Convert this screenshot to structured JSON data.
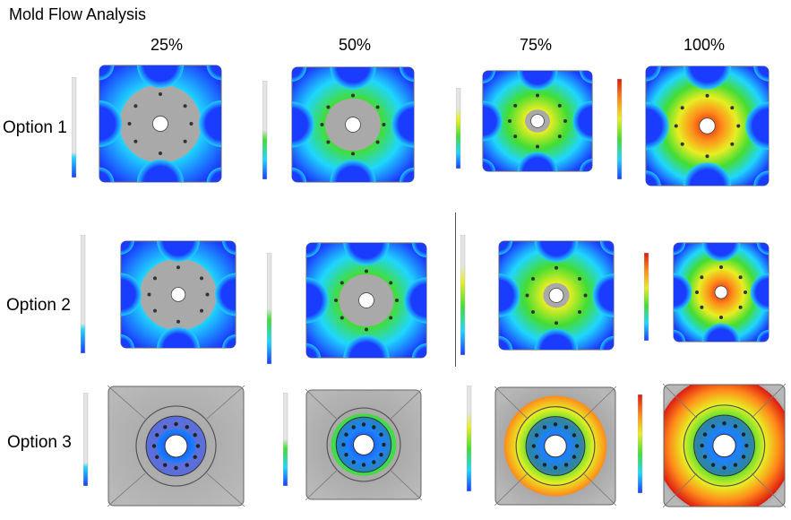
{
  "title": "Mold Flow Analysis",
  "columns": [
    "25%",
    "50%",
    "75%",
    "100%"
  ],
  "rows": [
    "Option 1",
    "Option 2",
    "Option 3"
  ],
  "colors": {
    "blue": "#1a3cff",
    "cyan": "#1fd6ff",
    "green": "#44dd33",
    "yellow": "#e8ee22",
    "orange": "#ff8a1a",
    "red": "#dd1a10",
    "gray": "#a9a9a9"
  }
}
